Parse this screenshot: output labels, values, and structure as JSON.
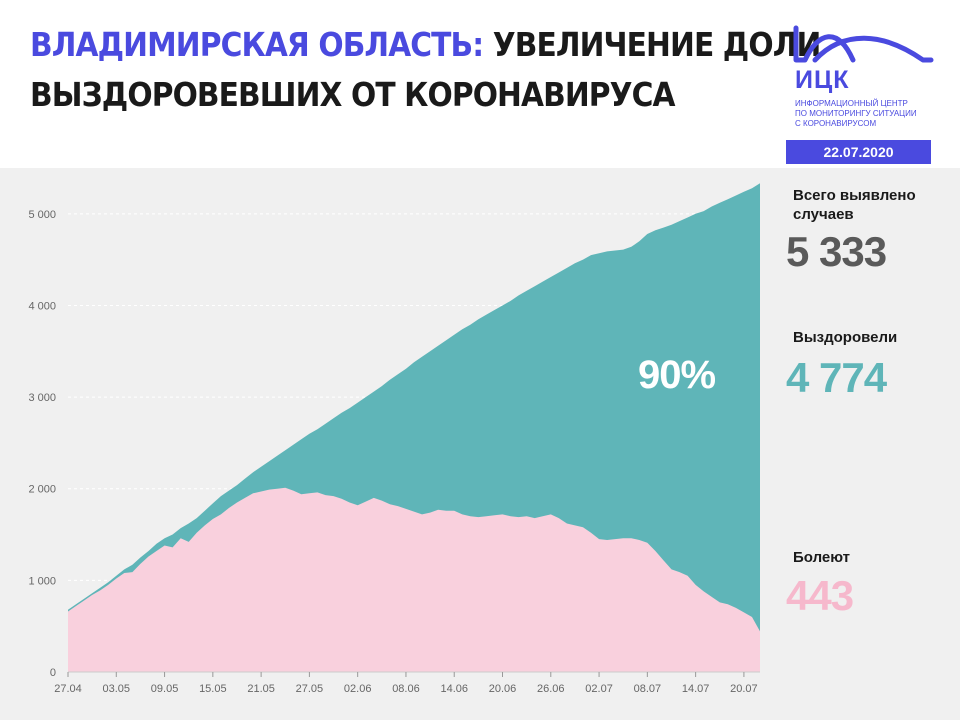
{
  "header": {
    "title_region": "Владимирская область:",
    "title_rest_line1": "увеличение доли",
    "title_line2": "выздоровевших от коронавируса",
    "logo_text": "ИЦК",
    "logo_subtitle": [
      "Информационный центр",
      "по мониторингу ситуации",
      "с коронавирусом"
    ],
    "date": "22.07.2020"
  },
  "stats": {
    "total_label": "Всего выявлено случаев",
    "total_value": "5 333",
    "recovered_label": "Выздоровели",
    "recovered_value": "4 774",
    "sick_label": "Болеют",
    "sick_value": "443",
    "recovered_share": "90%"
  },
  "colors": {
    "accent": "#4a4adf",
    "recovered": "#5fb5b8",
    "sick": "#f9d0dd",
    "total_value": "#5a5a5a",
    "recovered_value": "#5fb5b8",
    "sick_value": "#f6b8cc"
  },
  "chart_data": {
    "type": "area",
    "title": "",
    "xlabel": "",
    "ylabel": "",
    "ylim": [
      0,
      5500
    ],
    "yticks": [
      0,
      1000,
      2000,
      3000,
      4000,
      5000
    ],
    "ytick_labels": [
      "0",
      "1 000",
      "2 000",
      "3 000",
      "4 000",
      "5 000"
    ],
    "x_categories": [
      "27.04",
      "28.04",
      "29.04",
      "30.04",
      "01.05",
      "02.05",
      "03.05",
      "04.05",
      "05.05",
      "06.05",
      "07.05",
      "08.05",
      "09.05",
      "10.05",
      "11.05",
      "12.05",
      "13.05",
      "14.05",
      "15.05",
      "16.05",
      "17.05",
      "18.05",
      "19.05",
      "20.05",
      "21.05",
      "22.05",
      "23.05",
      "24.05",
      "25.05",
      "26.05",
      "27.05",
      "28.05",
      "29.05",
      "30.05",
      "31.05",
      "01.06",
      "02.06",
      "03.06",
      "04.06",
      "05.06",
      "06.06",
      "07.06",
      "08.06",
      "09.06",
      "10.06",
      "11.06",
      "12.06",
      "13.06",
      "14.06",
      "15.06",
      "16.06",
      "17.06",
      "18.06",
      "19.06",
      "20.06",
      "21.06",
      "22.06",
      "23.06",
      "24.06",
      "25.06",
      "26.06",
      "27.06",
      "28.06",
      "29.06",
      "30.06",
      "01.07",
      "02.07",
      "03.07",
      "04.07",
      "05.07",
      "06.07",
      "07.07",
      "08.07",
      "09.07",
      "10.07",
      "11.07",
      "12.07",
      "13.07",
      "14.07",
      "15.07",
      "16.07",
      "17.07",
      "18.07",
      "19.07",
      "20.07",
      "21.07",
      "22.07"
    ],
    "x_tick_labels": [
      "27.04",
      "03.05",
      "09.05",
      "15.05",
      "21.05",
      "27.05",
      "02.06",
      "08.06",
      "14.06",
      "20.06",
      "26.06",
      "02.07",
      "08.07",
      "14.07",
      "20.07"
    ],
    "series": [
      {
        "name": "Всего выявлено случаев",
        "values": [
          680,
          740,
          800,
          860,
          920,
          980,
          1050,
          1120,
          1170,
          1250,
          1320,
          1400,
          1460,
          1500,
          1570,
          1620,
          1680,
          1760,
          1840,
          1920,
          1980,
          2040,
          2110,
          2180,
          2240,
          2300,
          2360,
          2420,
          2480,
          2540,
          2600,
          2650,
          2710,
          2770,
          2830,
          2880,
          2940,
          3000,
          3060,
          3120,
          3190,
          3250,
          3310,
          3380,
          3440,
          3500,
          3560,
          3620,
          3680,
          3740,
          3790,
          3850,
          3900,
          3950,
          4000,
          4050,
          4110,
          4160,
          4210,
          4260,
          4310,
          4360,
          4410,
          4460,
          4500,
          4550,
          4570,
          4590,
          4600,
          4610,
          4640,
          4700,
          4780,
          4820,
          4850,
          4880,
          4920,
          4960,
          5000,
          5030,
          5080,
          5120,
          5160,
          5200,
          5240,
          5280,
          5333
        ]
      },
      {
        "name": "Болеют",
        "values": [
          660,
          720,
          780,
          840,
          890,
          950,
          1020,
          1080,
          1090,
          1180,
          1260,
          1320,
          1380,
          1360,
          1460,
          1420,
          1520,
          1600,
          1670,
          1720,
          1790,
          1850,
          1900,
          1950,
          1970,
          1990,
          2000,
          2010,
          1980,
          1940,
          1950,
          1960,
          1930,
          1920,
          1890,
          1850,
          1820,
          1860,
          1900,
          1870,
          1830,
          1810,
          1780,
          1750,
          1720,
          1740,
          1770,
          1760,
          1760,
          1720,
          1700,
          1690,
          1700,
          1710,
          1720,
          1700,
          1690,
          1700,
          1680,
          1700,
          1720,
          1680,
          1620,
          1600,
          1580,
          1520,
          1450,
          1440,
          1450,
          1460,
          1460,
          1440,
          1410,
          1320,
          1220,
          1120,
          1090,
          1050,
          950,
          880,
          820,
          760,
          740,
          700,
          650,
          600,
          443
        ]
      }
    ]
  }
}
